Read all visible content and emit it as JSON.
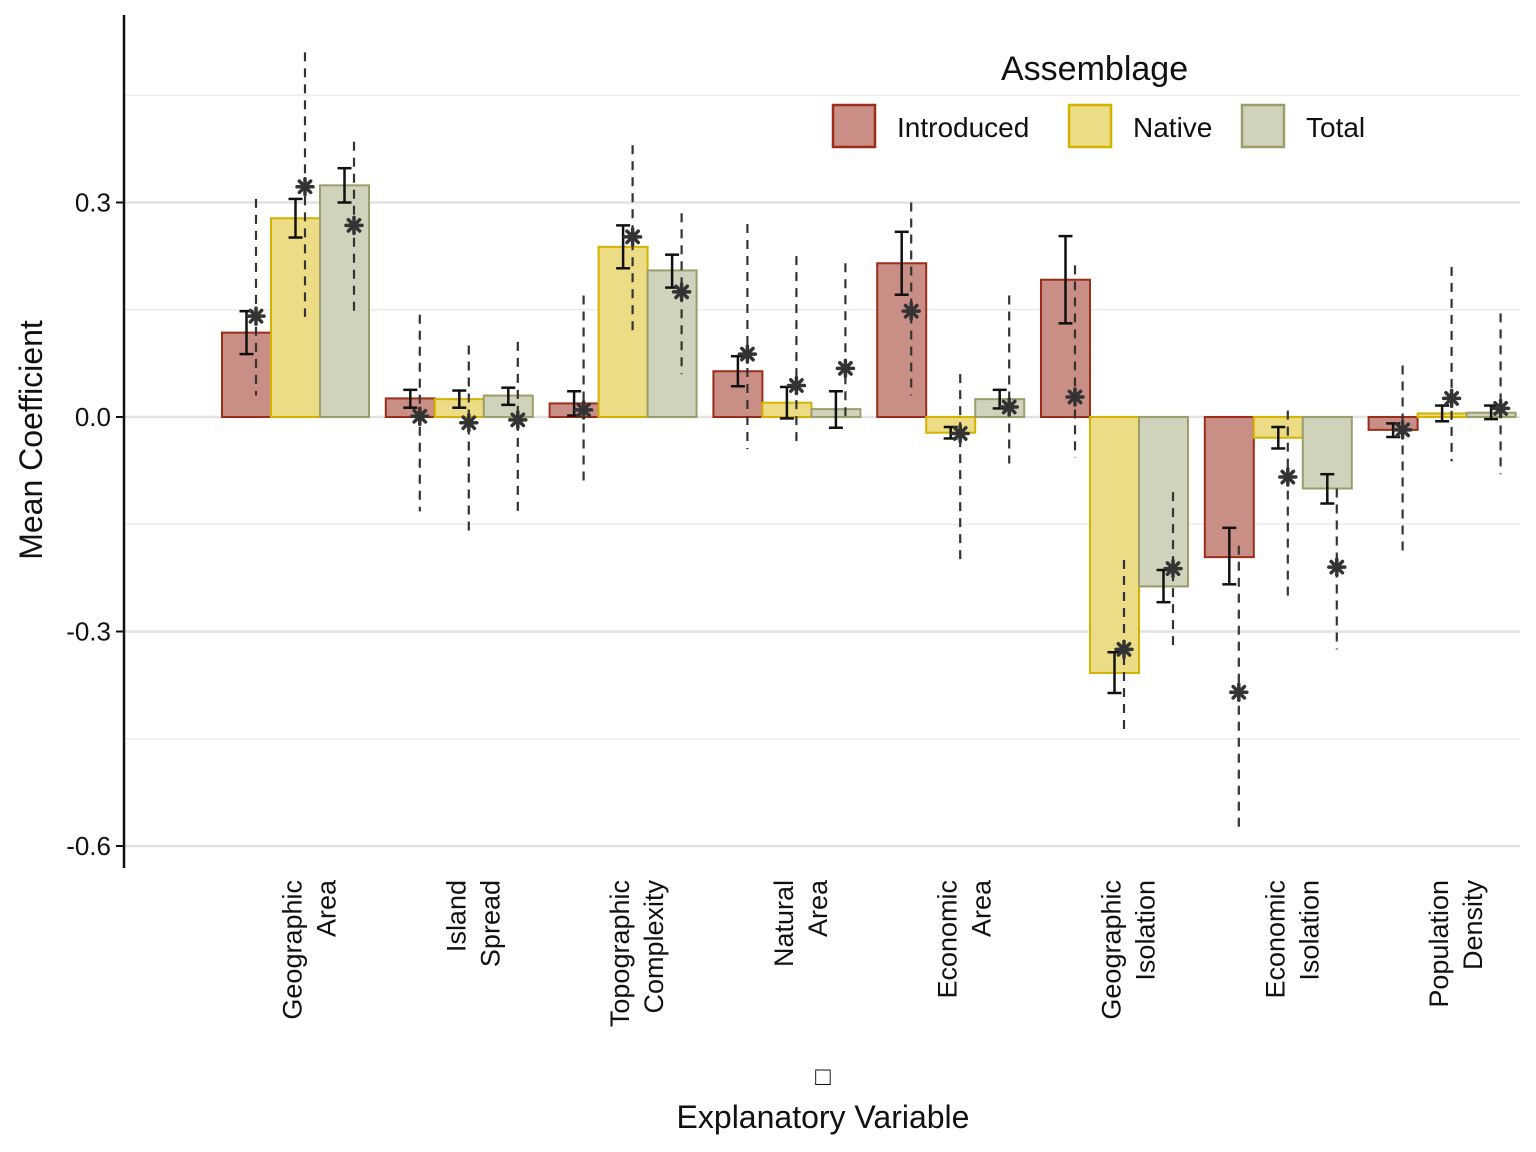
{
  "chart_data": {
    "type": "bar",
    "xlabel": "Explanatory Variable",
    "xlabel_symbol": "□",
    "ylabel": "Mean Coefficient",
    "ylim": [
      -0.62,
      0.56
    ],
    "yticks": [
      0.3,
      0.0,
      -0.3,
      -0.6
    ],
    "ytick_labels": [
      "0.3",
      "0.0",
      "-0.3",
      "-0.6"
    ],
    "grid": "horizontal",
    "legend": {
      "title": "Assemblage",
      "position": "top-right"
    },
    "categories": [
      [
        "Geographic",
        "Area"
      ],
      [
        "Island",
        "Spread"
      ],
      [
        "Topographic",
        "Complexity"
      ],
      [
        "Natural",
        "Area"
      ],
      [
        "Economic",
        "Area"
      ],
      [
        "Geographic",
        "Isolation"
      ],
      [
        "Economic",
        "Isolation"
      ],
      [
        "Population",
        "Density"
      ]
    ],
    "series": [
      {
        "name": "Introduced",
        "fill": "#c98e85",
        "stroke": "#9b2d1a",
        "values": [
          0.118,
          0.026,
          0.019,
          0.064,
          0.215,
          0.192,
          -0.196,
          -0.018
        ],
        "error_low": [
          0.088,
          0.013,
          0.002,
          0.043,
          0.171,
          0.131,
          -0.234,
          -0.028
        ],
        "error_high": [
          0.148,
          0.038,
          0.036,
          0.085,
          0.259,
          0.253,
          -0.155,
          -0.009
        ],
        "point": [
          0.141,
          0.001,
          0.01,
          0.088,
          0.148,
          0.028,
          -0.385,
          -0.018
        ],
        "point_low": [
          0.03,
          -0.132,
          -0.098,
          -0.045,
          0.03,
          -0.057,
          -0.575,
          -0.195
        ],
        "point_high": [
          0.305,
          0.143,
          0.17,
          0.27,
          0.3,
          0.212,
          -0.18,
          0.072
        ]
      },
      {
        "name": "Native",
        "fill": "#ebdc85",
        "stroke": "#d4b200",
        "values": [
          0.278,
          0.025,
          0.238,
          0.02,
          -0.022,
          -0.358,
          -0.029,
          0.005
        ],
        "error_low": [
          0.251,
          0.013,
          0.208,
          -0.002,
          -0.03,
          -0.386,
          -0.044,
          -0.006
        ],
        "error_high": [
          0.305,
          0.037,
          0.268,
          0.042,
          -0.014,
          -0.329,
          -0.014,
          0.016
        ],
        "point": [
          0.322,
          -0.008,
          0.252,
          0.044,
          -0.023,
          -0.325,
          -0.084,
          0.026
        ],
        "point_low": [
          0.14,
          -0.165,
          0.12,
          -0.035,
          -0.205,
          -0.44,
          -0.25,
          -0.062
        ],
        "point_high": [
          0.51,
          0.1,
          0.38,
          0.225,
          0.06,
          -0.2,
          0.009,
          0.21
        ]
      },
      {
        "name": "Total",
        "fill": "#d1d2bc",
        "stroke": "#9b9d6b",
        "values": [
          0.324,
          0.03,
          0.205,
          0.011,
          0.025,
          -0.237,
          -0.1,
          0.006
        ],
        "error_low": [
          0.3,
          0.017,
          0.181,
          -0.015,
          0.012,
          -0.259,
          -0.121,
          -0.003
        ],
        "error_high": [
          0.348,
          0.041,
          0.227,
          0.036,
          0.038,
          -0.214,
          -0.08,
          0.016
        ],
        "point": [
          0.268,
          -0.004,
          0.175,
          0.068,
          0.014,
          -0.212,
          -0.21,
          0.012
        ],
        "point_low": [
          0.145,
          -0.135,
          0.06,
          -0.005,
          -0.065,
          -0.325,
          -0.325,
          -0.08
        ],
        "point_high": [
          0.385,
          0.105,
          0.285,
          0.215,
          0.17,
          -0.105,
          -0.1,
          0.145
        ]
      }
    ]
  }
}
